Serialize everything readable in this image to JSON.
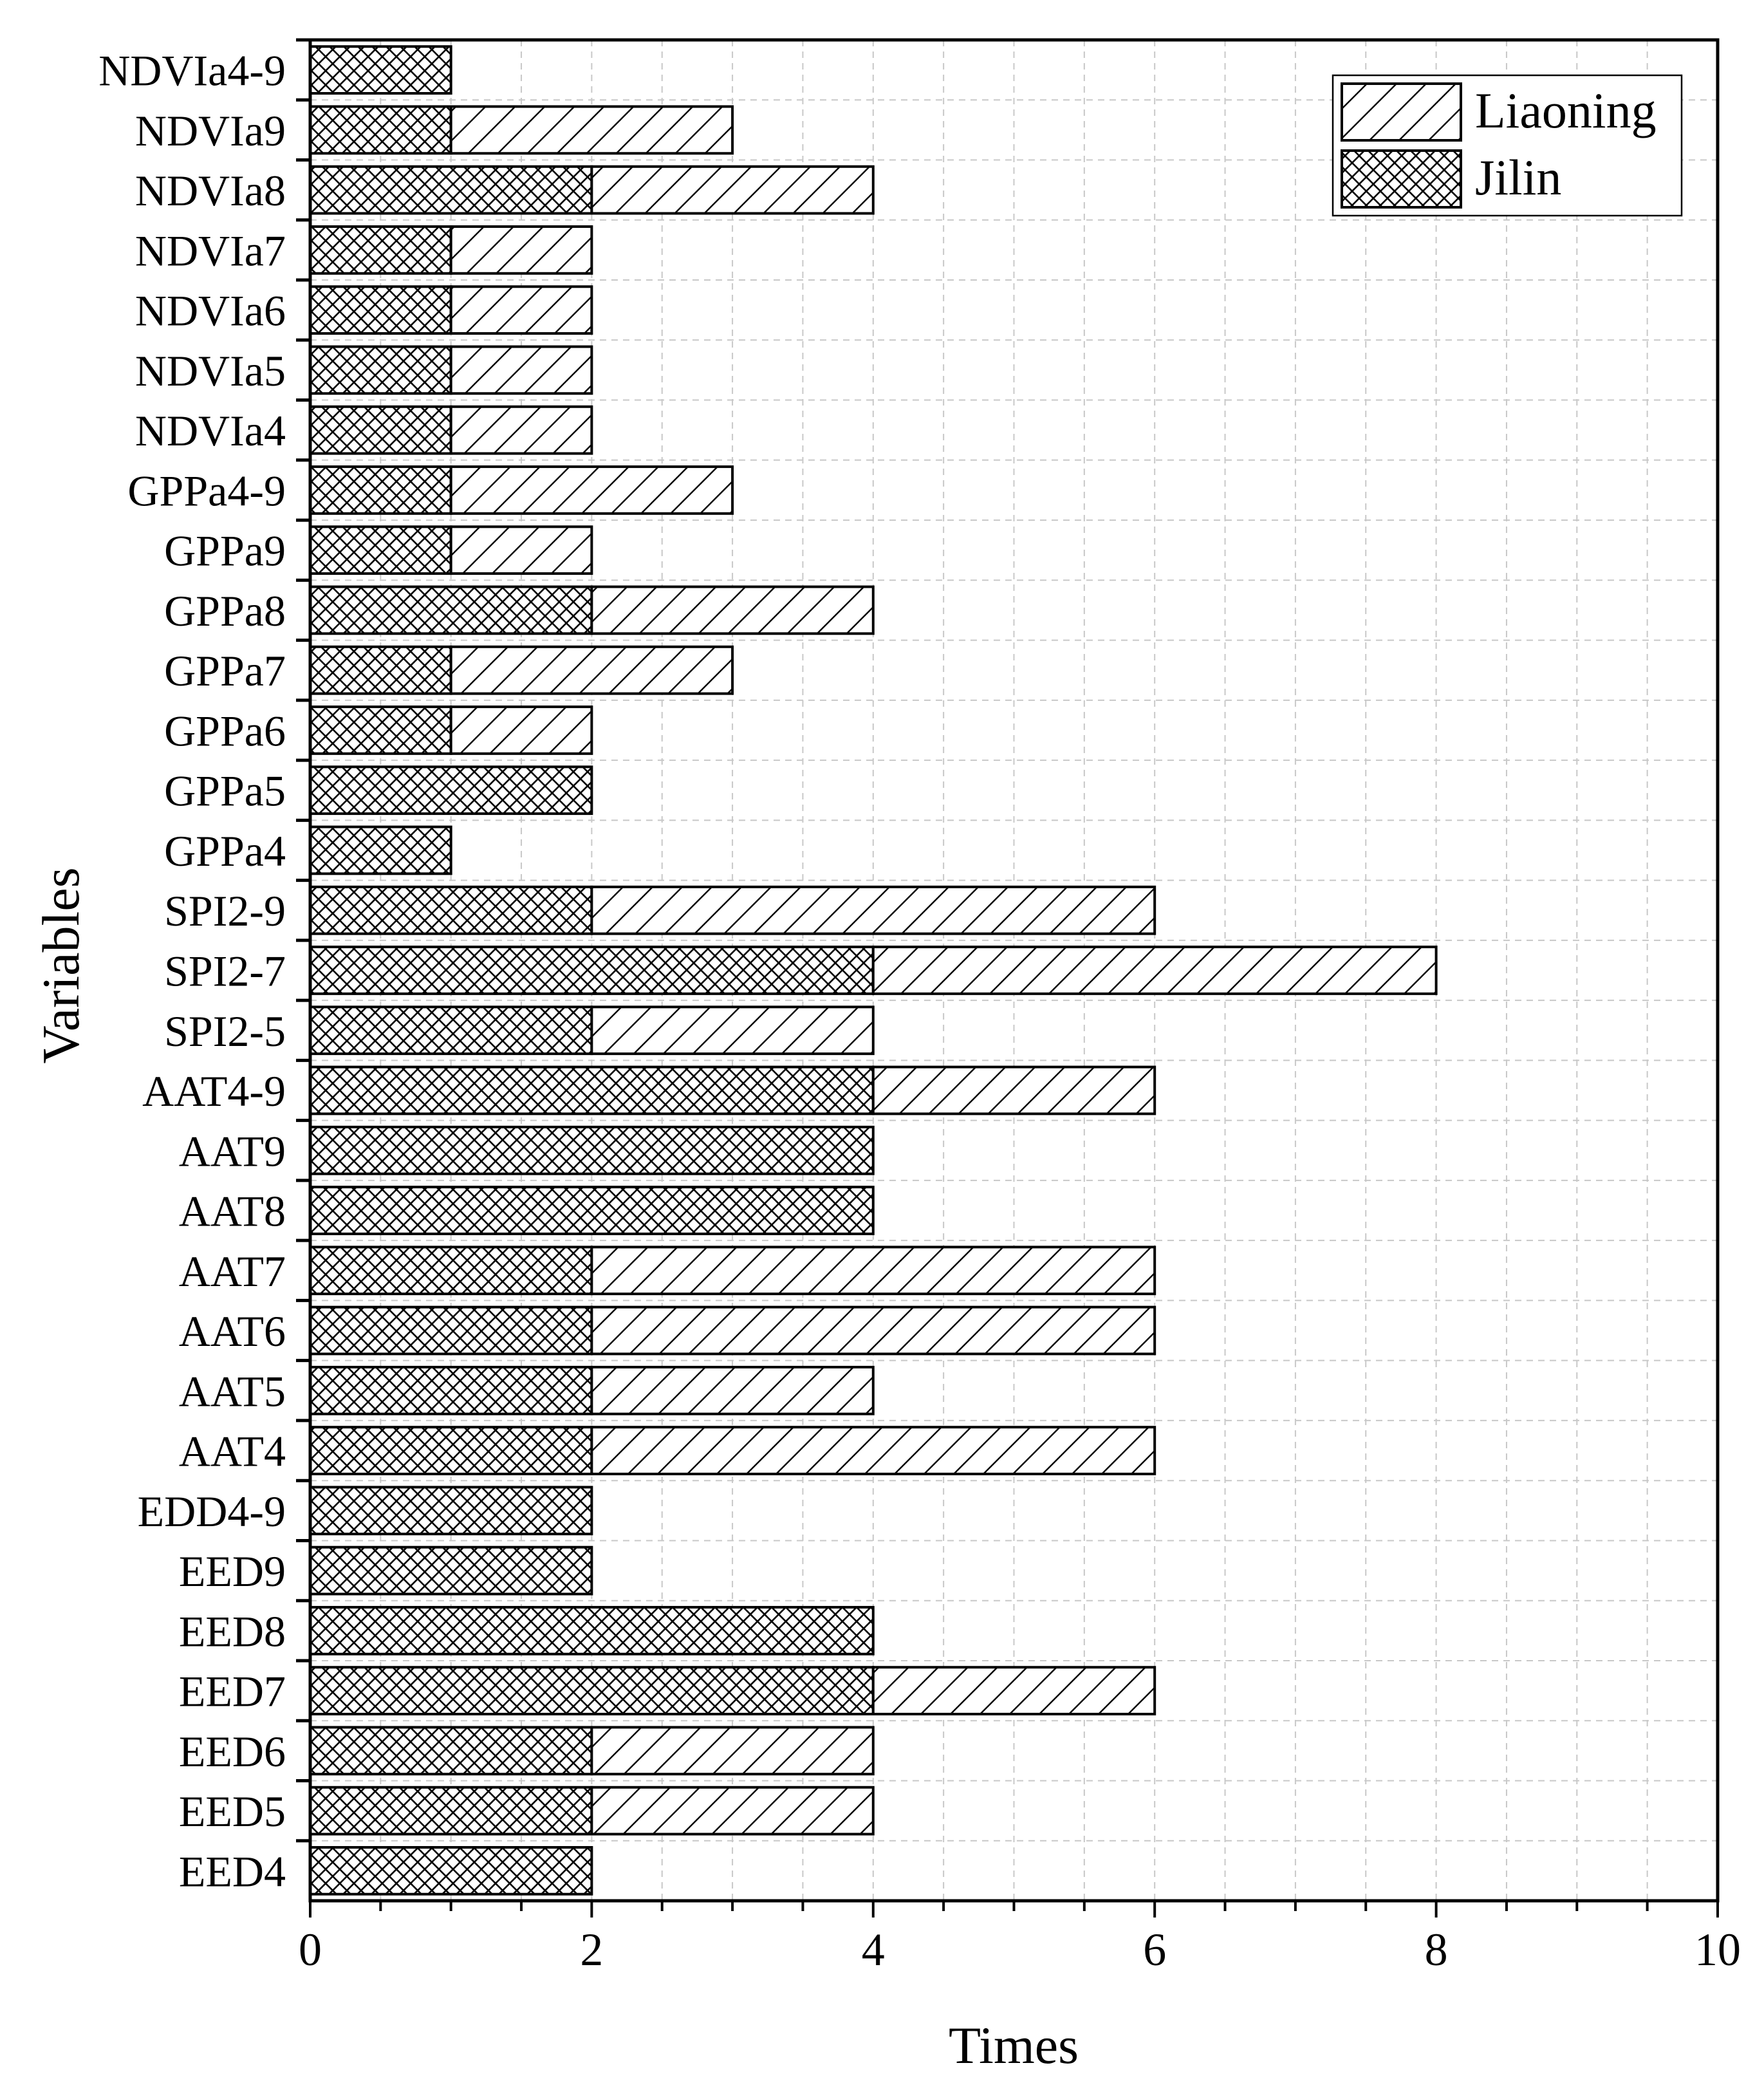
{
  "chart_data": {
    "type": "bar",
    "orientation": "horizontal",
    "stacked": true,
    "xlabel": "Times",
    "ylabel": "Variables",
    "xlim": [
      0,
      10
    ],
    "xticks": [
      "0",
      "2",
      "4",
      "6",
      "8",
      "10"
    ],
    "grid": true,
    "legend_position": "top-right",
    "categories": [
      "NDVIa4-9",
      "NDVIa9",
      "NDVIa8",
      "NDVIa7",
      "NDVIa6",
      "NDVIa5",
      "NDVIa4",
      "GPPa4-9",
      "GPPa9",
      "GPPa8",
      "GPPa7",
      "GPPa6",
      "GPPa5",
      "GPPa4",
      "SPI2-9",
      "SPI2-7",
      "SPI2-5",
      "AAT4-9",
      "AAT9",
      "AAT8",
      "AAT7",
      "AAT6",
      "AAT5",
      "AAT4",
      "EDD4-9",
      "EED9",
      "EED8",
      "EED7",
      "EED6",
      "EED5",
      "EED4"
    ],
    "series": [
      {
        "name": "Jilin",
        "pattern": "crosshatch",
        "values": [
          1,
          1,
          2,
          1,
          1,
          1,
          1,
          1,
          1,
          2,
          1,
          1,
          2,
          1,
          2,
          4,
          2,
          4,
          4,
          4,
          2,
          2,
          2,
          2,
          2,
          2,
          4,
          4,
          2,
          2,
          2
        ]
      },
      {
        "name": "Liaoning",
        "pattern": "diagonal",
        "values": [
          0,
          2,
          2,
          1,
          1,
          1,
          1,
          2,
          1,
          2,
          2,
          1,
          0,
          0,
          4,
          4,
          2,
          2,
          0,
          0,
          4,
          4,
          2,
          4,
          0,
          0,
          0,
          2,
          2,
          2,
          0
        ]
      }
    ],
    "legend": [
      "Liaoning",
      "Jilin"
    ]
  }
}
